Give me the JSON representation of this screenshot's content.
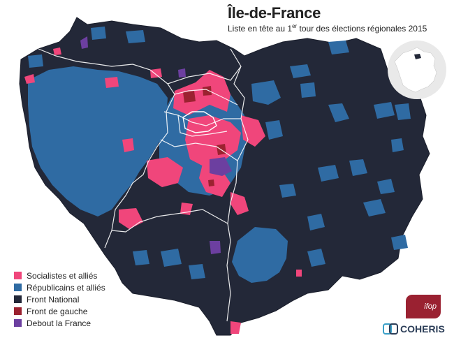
{
  "title": "Île-de-France",
  "subtitle": {
    "before": "Liste en tête au 1",
    "sup": "er",
    "after": " tour des élections régionales 2015"
  },
  "legend": [
    {
      "label": "Socialistes et alliés",
      "color": "#f0467b"
    },
    {
      "label": "Républicains et alliés",
      "color": "#2f6ba3"
    },
    {
      "label": "Front National",
      "color": "#232838"
    },
    {
      "label": "Front de gauche",
      "color": "#9b2230"
    },
    {
      "label": "Debout la France",
      "color": "#6c3fa0"
    }
  ],
  "logos": {
    "ifop": "ifop",
    "coheris": "COHERIS"
  },
  "icons": [
    "france-inset-map-icon",
    "ifop-logo",
    "coheris-logo"
  ]
}
